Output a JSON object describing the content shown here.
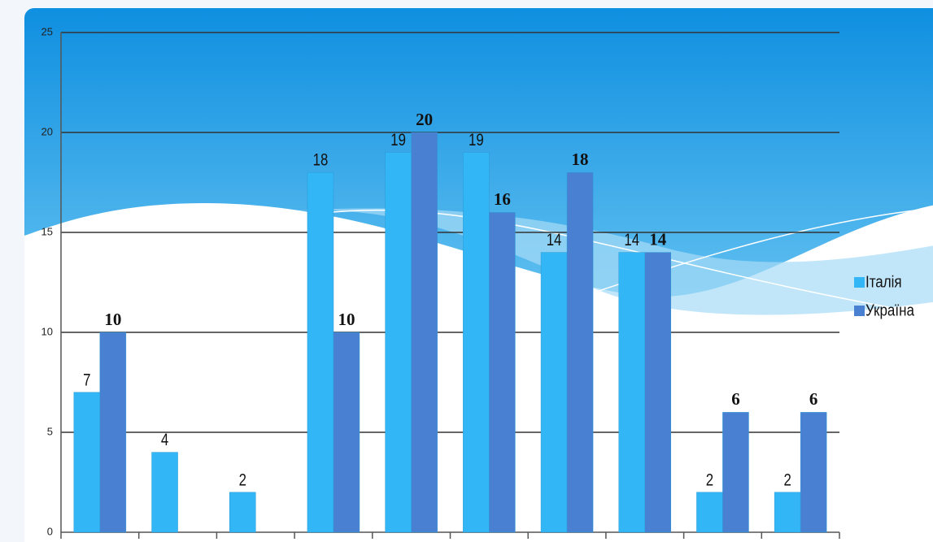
{
  "chart_data": {
    "type": "bar",
    "categories": [
      null,
      null,
      null,
      null,
      null,
      null,
      null,
      null,
      null,
      null
    ],
    "series": [
      {
        "name": "Італія",
        "color": "#33b6f6",
        "values": [
          7,
          4,
          2,
          18,
          19,
          19,
          14,
          14,
          2,
          2
        ]
      },
      {
        "name": "Україна",
        "color": "#4a80d2",
        "values": [
          10,
          null,
          null,
          10,
          20,
          16,
          18,
          14,
          6,
          6
        ]
      }
    ],
    "ylim": [
      0,
      25
    ],
    "yticks": [
      0,
      5,
      10,
      15,
      20,
      25
    ],
    "grid": true,
    "legend": "right"
  }
}
